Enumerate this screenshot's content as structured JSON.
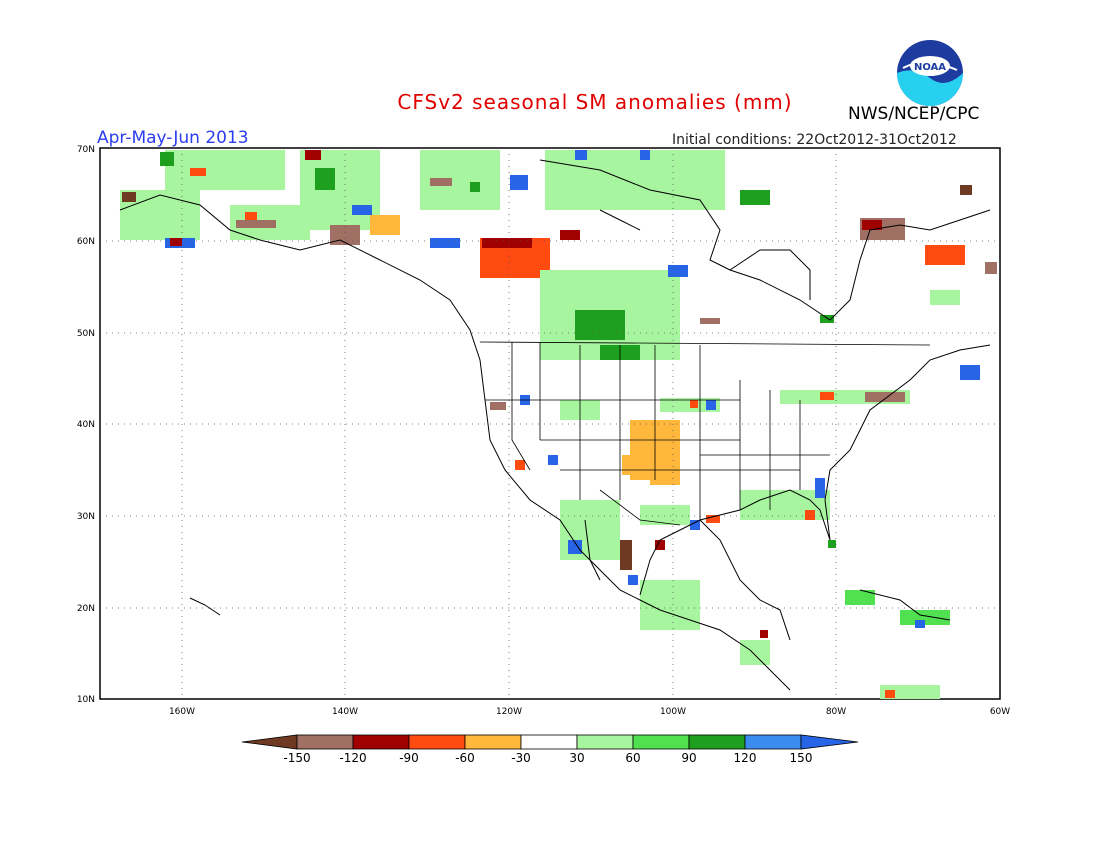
{
  "title": "CFSv2 seasonal SM anomalies (mm)",
  "season": "Apr-May-Jun 2013",
  "initial_conditions": "Initial conditions: 22Oct2012-31Oct2012",
  "agency": "NWS/NCEP/CPC",
  "logo_icon": "noaa-logo-icon",
  "map": {
    "lat_labels": [
      "70N",
      "60N",
      "50N",
      "40N",
      "30N",
      "20N",
      "10N"
    ],
    "lon_labels": [
      "160W",
      "140W",
      "120W",
      "100W",
      "80W",
      "60W"
    ]
  },
  "colorbar": {
    "labels": [
      "-150",
      "-120",
      "-90",
      "-60",
      "-30",
      "30",
      "60",
      "90",
      "120",
      "150"
    ],
    "colors": [
      "#6e3b22",
      "#a07064",
      "#a00000",
      "#ff4a10",
      "#ffb83c",
      "#ffffff",
      "#a8f5a0",
      "#50e050",
      "#1ea01e",
      "#3c8cf0",
      "#2864e6"
    ]
  }
}
